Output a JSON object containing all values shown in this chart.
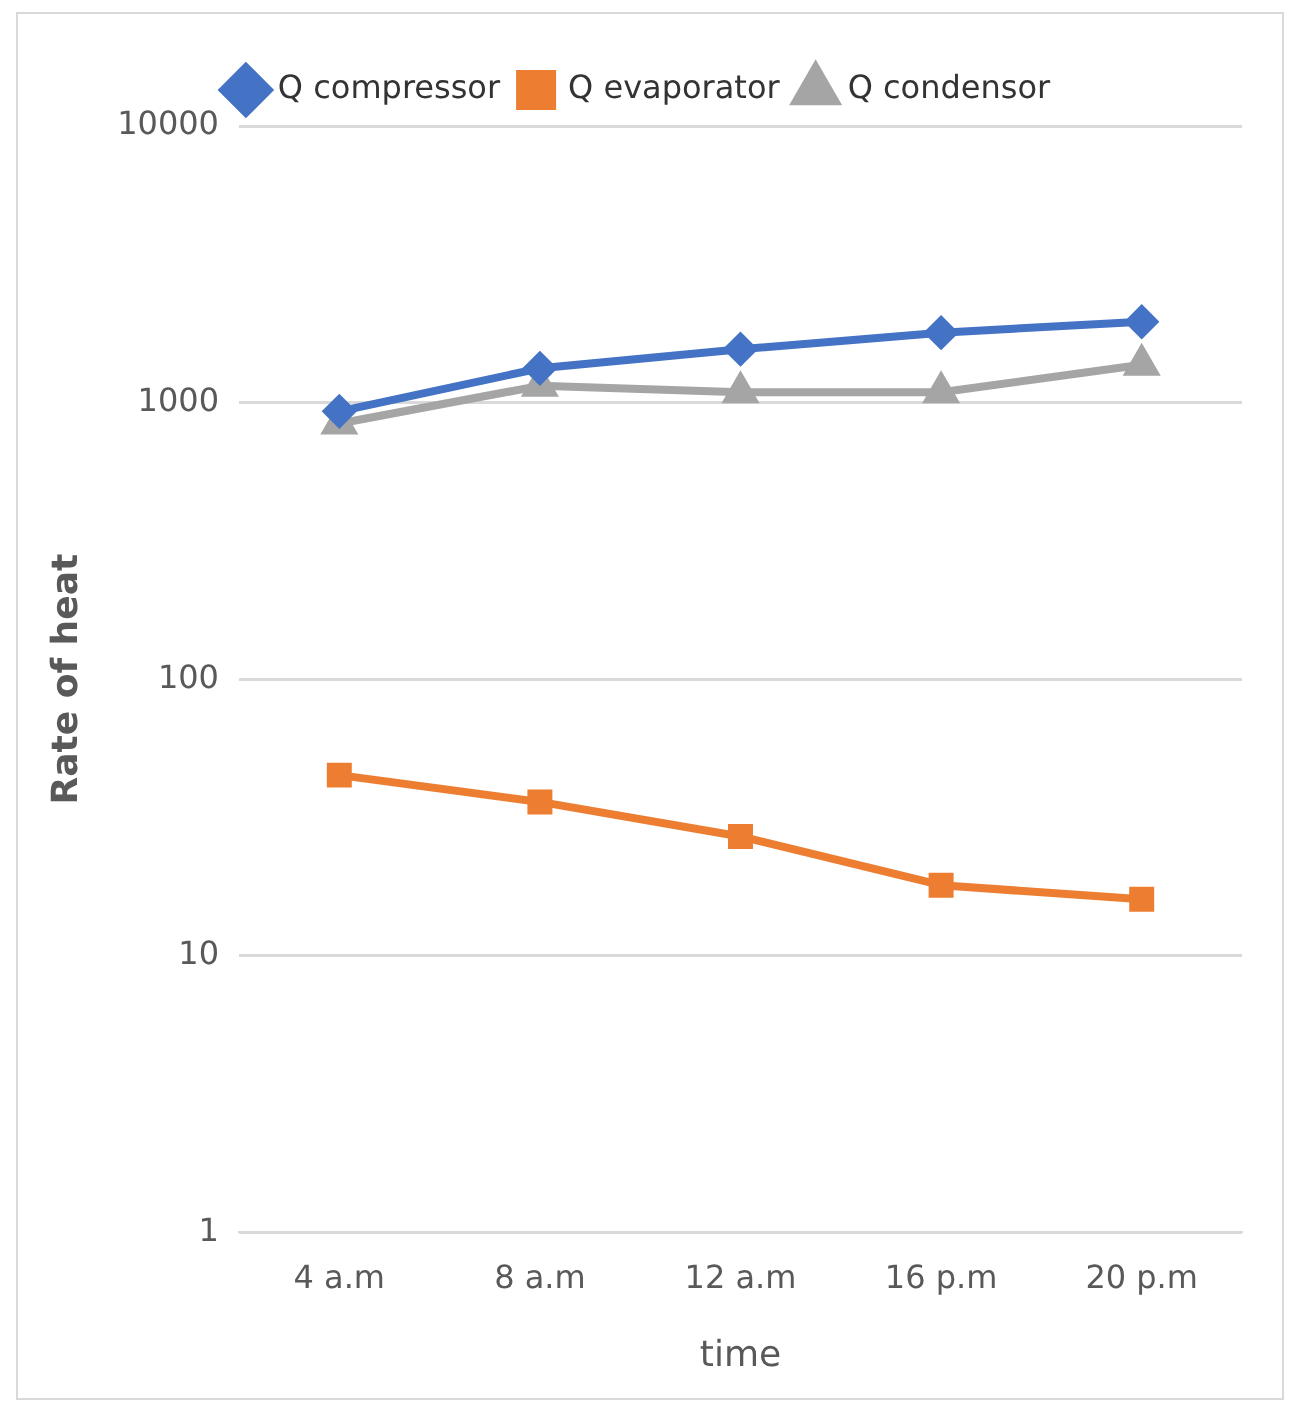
{
  "chart_data": {
    "type": "line",
    "xlabel": "time",
    "ylabel": "Rate of heat",
    "categories": [
      "4 a.m",
      "8 a.m",
      "12 a.m",
      "16 p.m",
      "20 p.m"
    ],
    "series": [
      {
        "name": "Q compressor",
        "color": "#4472c4",
        "marker": "diamond",
        "values": [
          930,
          1330,
          1560,
          1790,
          1960
        ]
      },
      {
        "name": "Q evaporator",
        "color": "#ed7d31",
        "marker": "square",
        "values": [
          45,
          36,
          27,
          18,
          16
        ]
      },
      {
        "name": "Q condensor",
        "color": "#a5a5a5",
        "marker": "triangle",
        "values": [
          840,
          1150,
          1090,
          1090,
          1370
        ]
      }
    ],
    "log": "y",
    "ylim": [
      1,
      10000
    ],
    "yticks": [
      1,
      10,
      100,
      1000,
      10000
    ],
    "grid": "y",
    "legend": "top"
  }
}
